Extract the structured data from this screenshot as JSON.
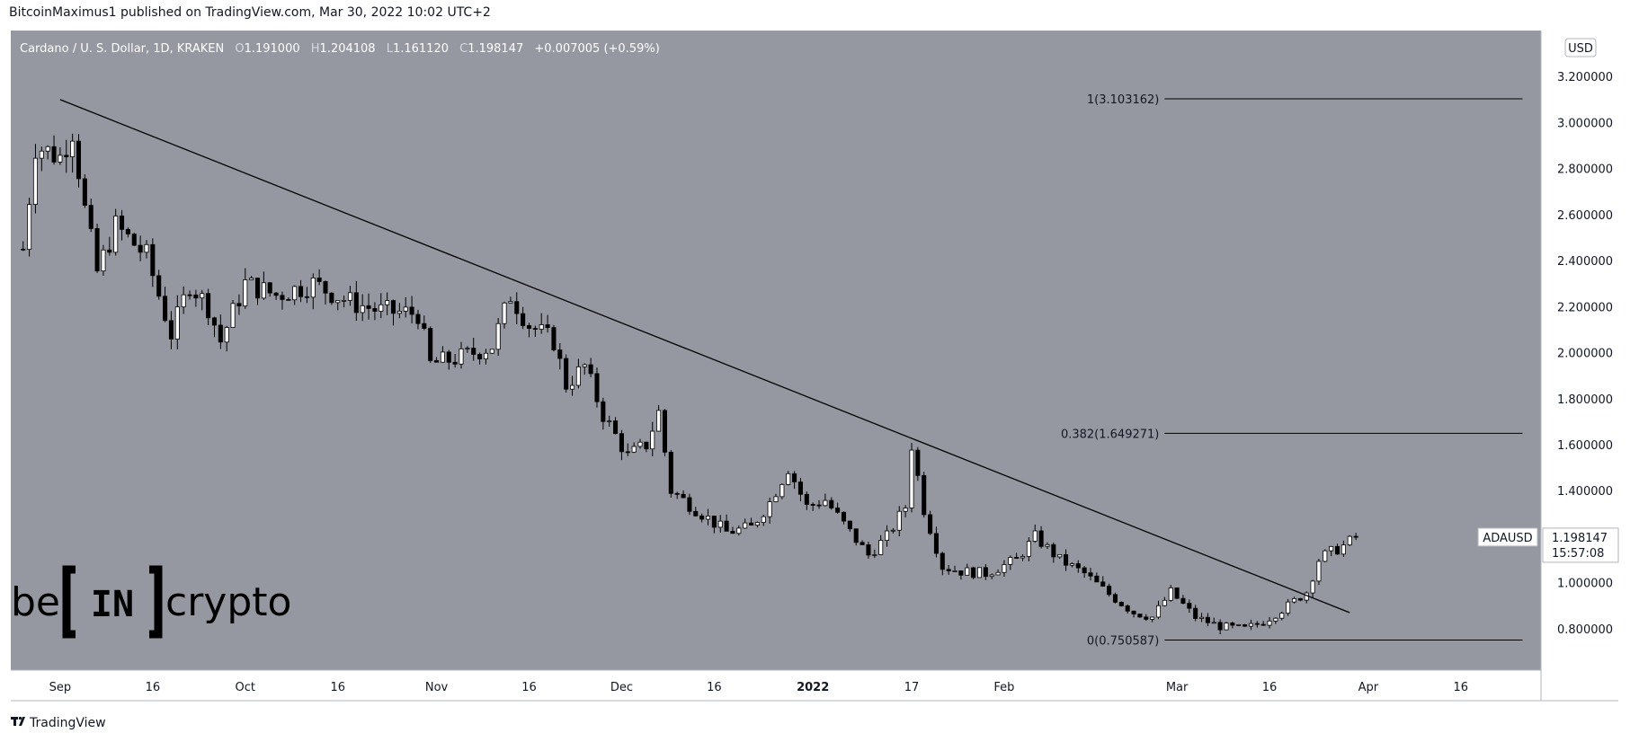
{
  "header": {
    "publisher_line": "BitcoinMaximus1 published on TradingView.com, Mar 30, 2022 10:02 UTC+2"
  },
  "ohlc_bar": {
    "symbol_text": "Cardano / U. S. Dollar, 1D, KRAKEN",
    "o_key": "O",
    "o_val": "1.191000",
    "h_key": "H",
    "h_val": "1.204108",
    "l_key": "L",
    "l_val": "1.161120",
    "c_key": "C",
    "c_val": "1.198147",
    "change": "+0.007005 (+0.59%)"
  },
  "currency_badge": "USD",
  "price_tag": {
    "symbol": "ADAUSD",
    "price": "1.198147",
    "countdown": "15:57:08"
  },
  "footer": {
    "brand": "TradingView"
  },
  "watermark": {
    "text_left": "be",
    "text_box": "IN",
    "text_right": "crypto"
  },
  "colors": {
    "plot_bg": "#9598a1",
    "candle_up_fill": "#ffffff",
    "candle_down_fill": "#000000",
    "candle_border": "#000000",
    "trendline": "#000000",
    "axis_bg": "#ffffff"
  },
  "chart_data": {
    "type": "candlestick",
    "title": "Cardano / U. S. Dollar, 1D, KRAKEN",
    "ylim": [
      0.62,
      3.4
    ],
    "xlim_day_index": [
      -8,
      240
    ],
    "y_ticks": [
      {
        "value": 3.2,
        "label": "3.200000"
      },
      {
        "value": 3.0,
        "label": "3.000000"
      },
      {
        "value": 2.8,
        "label": "2.800000"
      },
      {
        "value": 2.6,
        "label": "2.600000"
      },
      {
        "value": 2.4,
        "label": "2.400000"
      },
      {
        "value": 2.2,
        "label": "2.200000"
      },
      {
        "value": 2.0,
        "label": "2.000000"
      },
      {
        "value": 1.8,
        "label": "1.800000"
      },
      {
        "value": 1.6,
        "label": "1.600000"
      },
      {
        "value": 1.4,
        "label": "1.400000"
      },
      {
        "value": 1.2,
        "label": "1.200000"
      },
      {
        "value": 1.0,
        "label": "1.000000"
      },
      {
        "value": 0.8,
        "label": "0.800000"
      }
    ],
    "x_ticks": [
      {
        "day": 0,
        "label": "Sep",
        "bold": false
      },
      {
        "day": 15,
        "label": "16",
        "bold": false
      },
      {
        "day": 30,
        "label": "Oct",
        "bold": false
      },
      {
        "day": 45,
        "label": "16",
        "bold": false
      },
      {
        "day": 61,
        "label": "Nov",
        "bold": false
      },
      {
        "day": 76,
        "label": "16",
        "bold": false
      },
      {
        "day": 91,
        "label": "Dec",
        "bold": false
      },
      {
        "day": 106,
        "label": "16",
        "bold": false
      },
      {
        "day": 122,
        "label": "2022",
        "bold": true
      },
      {
        "day": 138,
        "label": "17",
        "bold": false
      },
      {
        "day": 153,
        "label": "Feb",
        "bold": false
      },
      {
        "day": 181,
        "label": "Mar",
        "bold": false
      },
      {
        "day": 196,
        "label": "16",
        "bold": false
      },
      {
        "day": 212,
        "label": "Apr",
        "bold": false
      },
      {
        "day": 227,
        "label": "16",
        "bold": false
      }
    ],
    "fib_levels": [
      {
        "label": "1(3.103162)",
        "value": 3.103162
      },
      {
        "label": "0.382(1.649271)",
        "value": 1.649271
      },
      {
        "label": "0(0.750587)",
        "value": 0.750587
      }
    ],
    "fib_line_days": [
      179,
      237
    ],
    "trendline": [
      {
        "day": 0,
        "price": 3.1
      },
      {
        "day": 209,
        "price": 0.87
      }
    ],
    "anchors": [
      {
        "day": -6,
        "price": 2.45
      },
      {
        "day": -4,
        "price": 2.9
      },
      {
        "day": 0,
        "price": 2.85
      },
      {
        "day": 2,
        "price": 2.97
      },
      {
        "day": 4,
        "price": 2.62
      },
      {
        "day": 6,
        "price": 2.35
      },
      {
        "day": 9,
        "price": 2.55
      },
      {
        "day": 14,
        "price": 2.42
      },
      {
        "day": 18,
        "price": 2.08
      },
      {
        "day": 21,
        "price": 2.3
      },
      {
        "day": 24,
        "price": 2.2
      },
      {
        "day": 26,
        "price": 2.05
      },
      {
        "day": 30,
        "price": 2.3
      },
      {
        "day": 35,
        "price": 2.25
      },
      {
        "day": 41,
        "price": 2.3
      },
      {
        "day": 47,
        "price": 2.22
      },
      {
        "day": 52,
        "price": 2.18
      },
      {
        "day": 58,
        "price": 2.17
      },
      {
        "day": 60,
        "price": 1.95
      },
      {
        "day": 65,
        "price": 1.98
      },
      {
        "day": 70,
        "price": 2.03
      },
      {
        "day": 73,
        "price": 2.25
      },
      {
        "day": 76,
        "price": 2.12
      },
      {
        "day": 80,
        "price": 2.05
      },
      {
        "day": 82,
        "price": 1.86
      },
      {
        "day": 85,
        "price": 1.94
      },
      {
        "day": 88,
        "price": 1.73
      },
      {
        "day": 92,
        "price": 1.55
      },
      {
        "day": 95,
        "price": 1.6
      },
      {
        "day": 97,
        "price": 1.74
      },
      {
        "day": 99,
        "price": 1.4
      },
      {
        "day": 104,
        "price": 1.3
      },
      {
        "day": 108,
        "price": 1.22
      },
      {
        "day": 112,
        "price": 1.24
      },
      {
        "day": 115,
        "price": 1.35
      },
      {
        "day": 118,
        "price": 1.5
      },
      {
        "day": 121,
        "price": 1.33
      },
      {
        "day": 124,
        "price": 1.36
      },
      {
        "day": 128,
        "price": 1.22
      },
      {
        "day": 131,
        "price": 1.12
      },
      {
        "day": 134,
        "price": 1.2
      },
      {
        "day": 137,
        "price": 1.33
      },
      {
        "day": 138,
        "price": 1.6
      },
      {
        "day": 140,
        "price": 1.32
      },
      {
        "day": 143,
        "price": 1.07
      },
      {
        "day": 146,
        "price": 1.05
      },
      {
        "day": 150,
        "price": 1.04
      },
      {
        "day": 155,
        "price": 1.1
      },
      {
        "day": 158,
        "price": 1.2
      },
      {
        "day": 162,
        "price": 1.1
      },
      {
        "day": 166,
        "price": 1.04
      },
      {
        "day": 170,
        "price": 0.95
      },
      {
        "day": 174,
        "price": 0.87
      },
      {
        "day": 177,
        "price": 0.85
      },
      {
        "day": 180,
        "price": 0.96
      },
      {
        "day": 184,
        "price": 0.85
      },
      {
        "day": 188,
        "price": 0.81
      },
      {
        "day": 192,
        "price": 0.8
      },
      {
        "day": 195,
        "price": 0.83
      },
      {
        "day": 199,
        "price": 0.9
      },
      {
        "day": 202,
        "price": 0.96
      },
      {
        "day": 204,
        "price": 1.1
      },
      {
        "day": 205,
        "price": 1.12
      },
      {
        "day": 208,
        "price": 1.16
      },
      {
        "day": 210,
        "price": 1.198
      }
    ],
    "series_note": "approximate daily ADA/USD candles read from the chart"
  }
}
